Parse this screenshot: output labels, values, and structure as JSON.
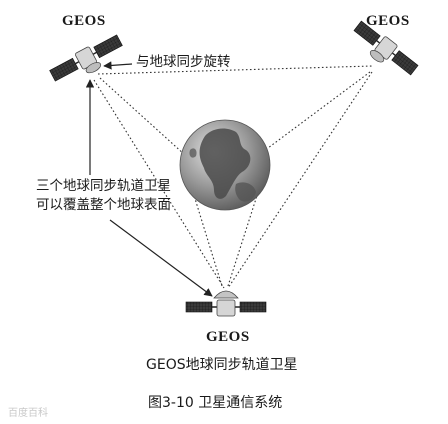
{
  "labels": {
    "geos_left": "GEOS",
    "geos_right": "GEOS",
    "geos_bottom": "GEOS",
    "sync_rotation": "与地球同步旋转",
    "coverage_line1": "三个地球同步轨道卫星",
    "coverage_line2": "可以覆盖整个地球表面",
    "subtitle": "GEOS地球同步轨道卫星",
    "caption": "图3-10  卫星通信系统",
    "watermark": "百度百科"
  },
  "icons": {
    "satellite": "satellite-icon",
    "earth": "earth-globe-icon"
  },
  "colors": {
    "line": "#333333",
    "ocean": "#8c8c8c",
    "land": "#4a4a4a",
    "panel": "#2b2b2b"
  }
}
